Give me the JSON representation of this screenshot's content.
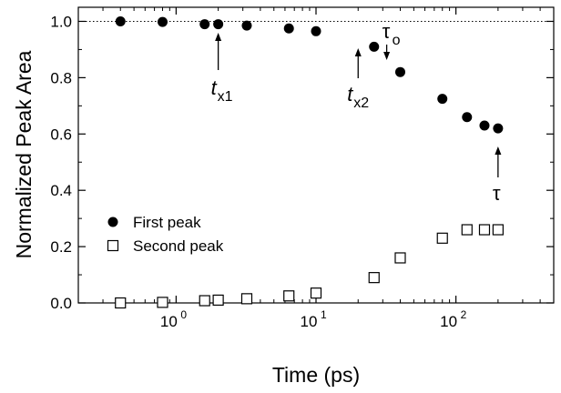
{
  "chart_data": {
    "type": "scatter",
    "xlabel": "Time (ps)",
    "ylabel": "Normalized Peak Area",
    "x_scale": "log",
    "xlim": [
      0.2,
      500
    ],
    "ylim": [
      0,
      1.05
    ],
    "y_ticks": [
      "0.0",
      "0.2",
      "0.4",
      "0.6",
      "0.8",
      "1.0"
    ],
    "y_tick_values": [
      0,
      0.2,
      0.4,
      0.6,
      0.8,
      1.0
    ],
    "x_ticks": [
      {
        "value": 1,
        "base": "10",
        "exp": "0"
      },
      {
        "value": 10,
        "base": "10",
        "exp": "1"
      },
      {
        "value": 100,
        "base": "10",
        "exp": "2"
      }
    ],
    "reference_line": {
      "y": 1.0,
      "style": "dotted"
    },
    "legend_position": "middle-left",
    "series": [
      {
        "name": "First peak",
        "marker": "filled-circle",
        "x": [
          0.4,
          0.8,
          1.6,
          2.0,
          3.2,
          6.4,
          10,
          26,
          40,
          80,
          120,
          160,
          200
        ],
        "y": [
          1.0,
          0.998,
          0.99,
          0.99,
          0.985,
          0.975,
          0.965,
          0.91,
          0.82,
          0.725,
          0.66,
          0.63,
          0.62
        ]
      },
      {
        "name": "Second peak",
        "marker": "open-square",
        "x": [
          0.4,
          0.8,
          1.6,
          2.0,
          3.2,
          6.4,
          10,
          26,
          40,
          80,
          120,
          160,
          200
        ],
        "y": [
          0.0,
          0.002,
          0.008,
          0.01,
          0.015,
          0.025,
          0.035,
          0.09,
          0.16,
          0.23,
          0.26,
          0.26,
          0.26
        ]
      }
    ],
    "annotations": [
      {
        "main": "t",
        "sub": "x1",
        "x": 2.0,
        "arrow": "up"
      },
      {
        "main": "t",
        "sub": "x2",
        "x": 20,
        "arrow": "up"
      },
      {
        "main": "τ",
        "sub": "o",
        "x": 32,
        "arrow": "down"
      },
      {
        "main": "τ",
        "sub": "",
        "x": 200,
        "arrow": "up"
      }
    ]
  }
}
